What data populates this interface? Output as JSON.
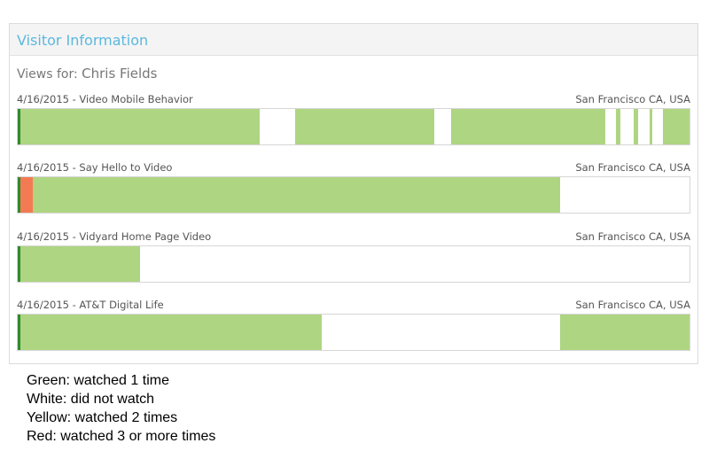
{
  "panel": {
    "title": "Visitor Information",
    "views_for_label": "Views for:",
    "visitor_name": "Chris Fields"
  },
  "colors": {
    "watched_once": "#aed581",
    "not_watched": "#ffffff",
    "watched_three_plus": "#f47a54",
    "start_marker": "#2e8b2e",
    "title_blue": "#5bb8de"
  },
  "videos": [
    {
      "title": "4/16/2015 - Video Mobile Behavior",
      "location": "San Francisco CA, USA",
      "segments": [
        {
          "state": "watched_once",
          "start": 0.0,
          "end": 0.36
        },
        {
          "state": "watched_once",
          "start": 0.413,
          "end": 0.62
        },
        {
          "state": "watched_once",
          "start": 0.645,
          "end": 0.875
        },
        {
          "state": "watched_once",
          "start": 0.89,
          "end": 0.897
        },
        {
          "state": "watched_once",
          "start": 0.917,
          "end": 0.923
        },
        {
          "state": "watched_once",
          "start": 0.94,
          "end": 0.945
        },
        {
          "state": "watched_once",
          "start": 0.96,
          "end": 1.0
        }
      ]
    },
    {
      "title": "4/16/2015 - Say Hello to Video",
      "location": "San Francisco CA, USA",
      "segments": [
        {
          "state": "watched_three_plus",
          "start": 0.0,
          "end": 0.022
        },
        {
          "state": "watched_once",
          "start": 0.022,
          "end": 0.808
        }
      ]
    },
    {
      "title": "4/16/2015 - Vidyard Home Page Video",
      "location": "San Francisco CA, USA",
      "segments": [
        {
          "state": "watched_once",
          "start": 0.0,
          "end": 0.182
        }
      ]
    },
    {
      "title": "4/16/2015 - AT&T Digital Life",
      "location": "San Francisco CA, USA",
      "segments": [
        {
          "state": "watched_once",
          "start": 0.0,
          "end": 0.452
        },
        {
          "state": "watched_once",
          "start": 0.808,
          "end": 1.0
        }
      ]
    }
  ],
  "legend": [
    "Green: watched 1 time",
    "White: did not watch",
    "Yellow: watched 2 times",
    "Red: watched 3 or more times"
  ]
}
